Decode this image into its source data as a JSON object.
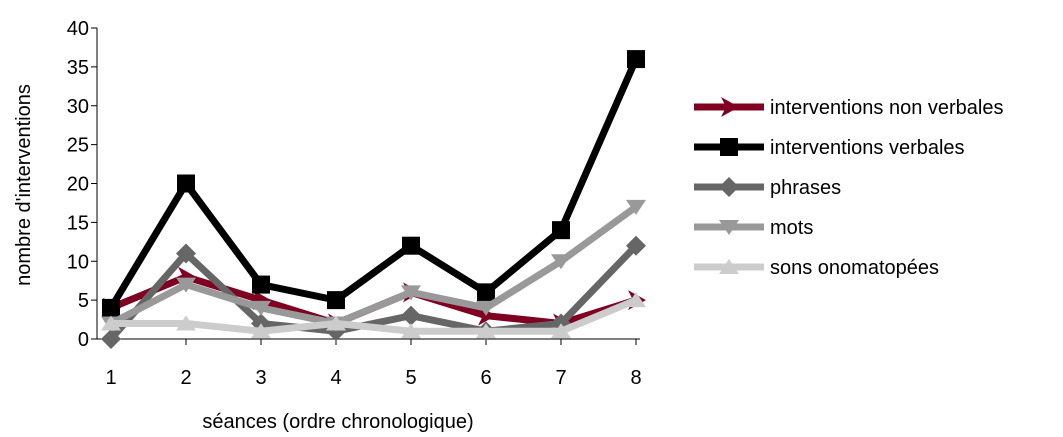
{
  "chart_data": {
    "type": "line",
    "xlabel": "séances (ordre chronologique)",
    "ylabel": "nombre d'interventions",
    "categories": [
      "1",
      "2",
      "3",
      "4",
      "5",
      "6",
      "7",
      "8"
    ],
    "ylim": [
      0,
      40
    ],
    "yticks": [
      0,
      5,
      10,
      15,
      20,
      25,
      30,
      35,
      40
    ],
    "grid": "off",
    "legend_position": "right",
    "series": [
      {
        "name": "interventions non verbales",
        "values": [
          4,
          8,
          5,
          2,
          6,
          3,
          2,
          5
        ],
        "color": "#7f0021",
        "marker": "arrow-right"
      },
      {
        "name": "interventions verbales",
        "values": [
          4,
          20,
          7,
          5,
          12,
          6,
          14,
          36
        ],
        "color": "#000000",
        "marker": "square"
      },
      {
        "name": "phrases",
        "values": [
          0,
          11,
          2,
          1,
          3,
          1,
          2,
          12
        ],
        "color": "#666666",
        "marker": "diamond"
      },
      {
        "name": "mots",
        "values": [
          2,
          7,
          4,
          2,
          6,
          4,
          10,
          17
        ],
        "color": "#999999",
        "marker": "triangle-down"
      },
      {
        "name": "sons onomatopées",
        "values": [
          2,
          2,
          1,
          2,
          1,
          1,
          1,
          5
        ],
        "color": "#cccccc",
        "marker": "triangle-up"
      }
    ]
  }
}
